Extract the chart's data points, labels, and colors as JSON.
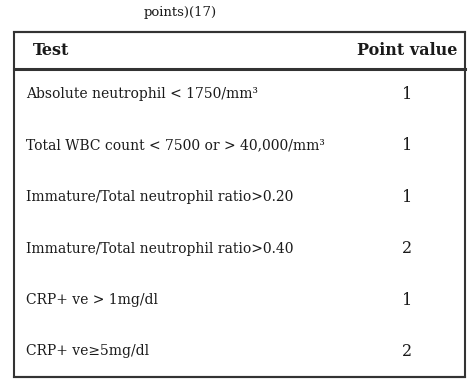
{
  "title_partial": "points)(17)",
  "col1_header": "Test",
  "col2_header": "Point value",
  "rows": [
    {
      "test": "Absolute neutrophil < 1750/mm³",
      "value": "1"
    },
    {
      "test": "Total WBC count < 7500 or > 40,000/mm³",
      "value": "1"
    },
    {
      "test": "Immature/Total neutrophil ratio>0.20",
      "value": "1"
    },
    {
      "test": "Immature/Total neutrophil ratio>0.40",
      "value": "2"
    },
    {
      "test": "CRP+ ve > 1mg/dl",
      "value": "1"
    },
    {
      "test": "CRP+ ve≥5mg/dl",
      "value": "2"
    }
  ],
  "background_color": "#ffffff",
  "text_color": "#1a1a1a",
  "header_bg": "#ffffff",
  "border_color": "#333333",
  "figsize": [
    4.74,
    3.81
  ],
  "dpi": 100
}
